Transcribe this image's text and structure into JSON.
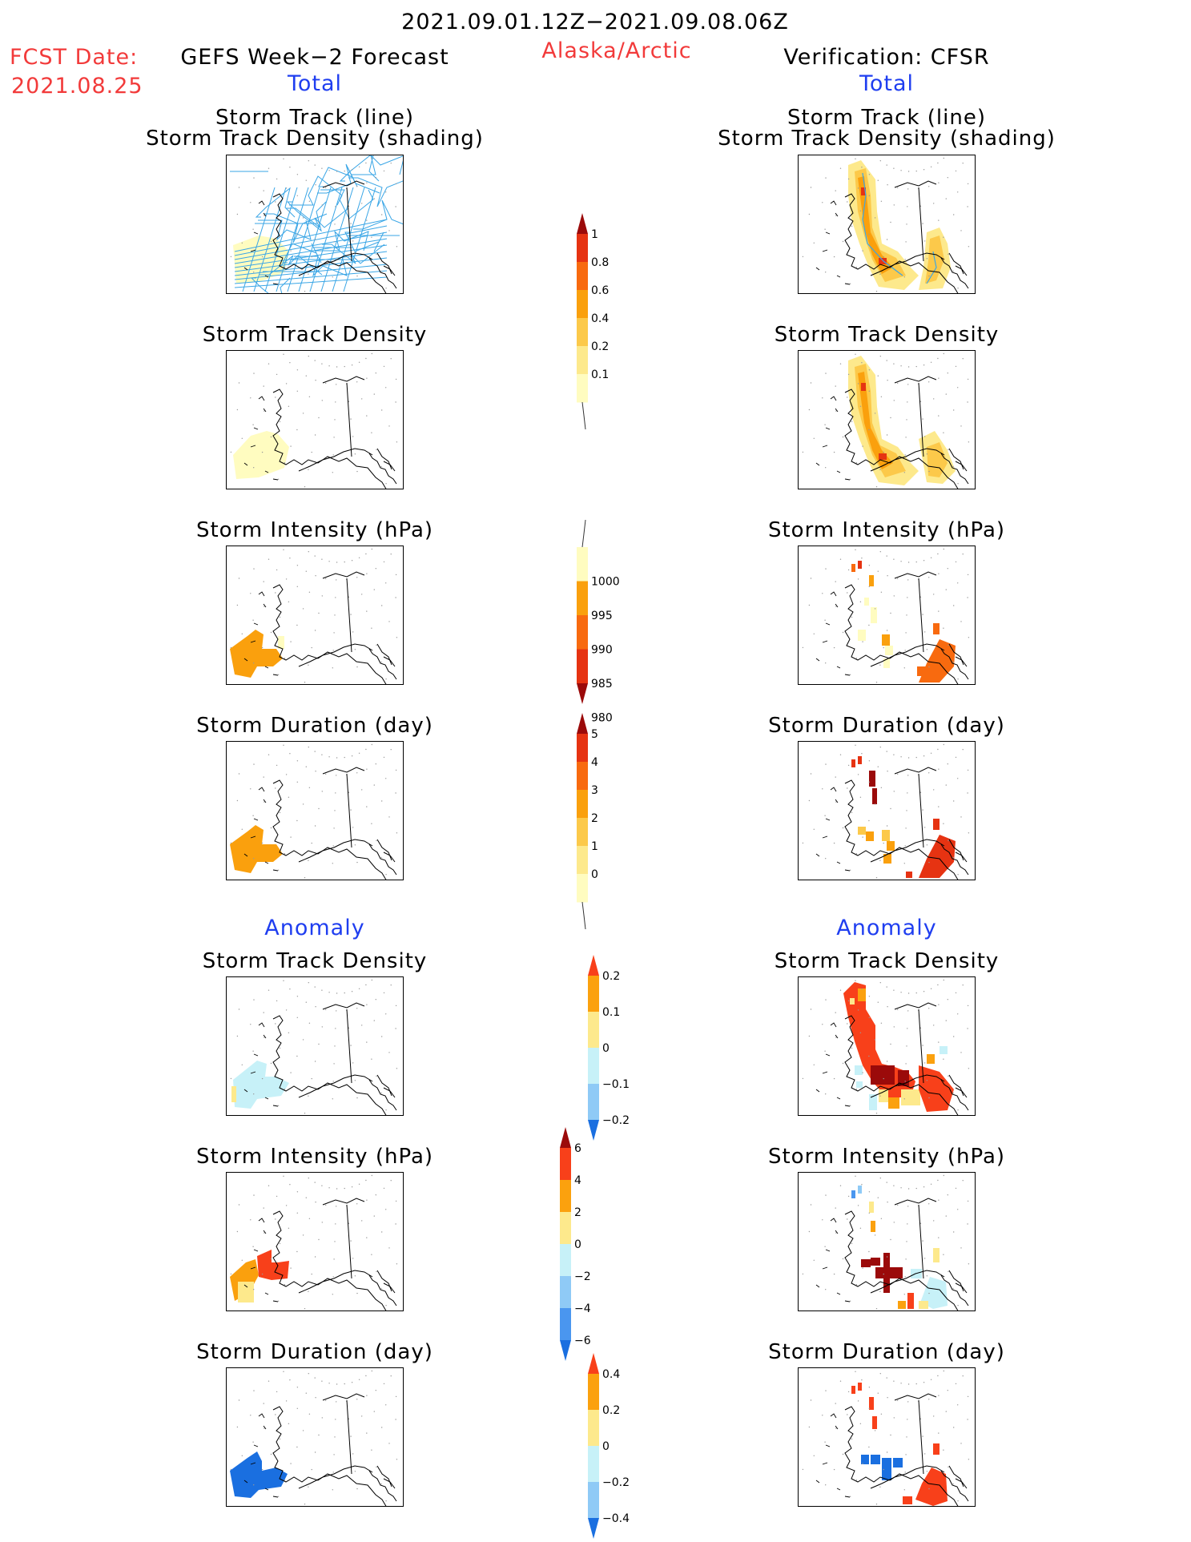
{
  "header": {
    "title": "2021.09.01.12Z−2021.09.08.06Z",
    "region": "Alaska/Arctic",
    "fcst_label": "FCST Date:",
    "fcst_date": "2021.08.25",
    "left_source": "GEFS Week−2 Forecast",
    "right_source": "Verification: CFSR",
    "left_total": "Total",
    "right_total": "Total",
    "left_anomaly": "Anomaly",
    "right_anomaly": "Anomaly"
  },
  "panels": {
    "track_line": "Storm Track (line)",
    "track_shading": "Storm Track Density (shading)",
    "density": "Storm Track Density",
    "intensity": "Storm Intensity (hPa)",
    "duration": "Storm Duration (day)"
  },
  "colorbars": {
    "density_total": {
      "ticks": [
        "1",
        "0.8",
        "0.6",
        "0.4",
        "0.2",
        "0.1"
      ],
      "colors": [
        "#9b0a0a",
        "#e63312",
        "#f86a0f",
        "#faa00d",
        "#fcc94a",
        "#fde98c",
        "#fffcc0"
      ]
    },
    "intensity_total": {
      "ticks": [
        "1000",
        "995",
        "990",
        "985",
        "980"
      ],
      "colors": [
        "#fffcc0",
        "#faa00d",
        "#f86a0f",
        "#e63312",
        "#9b0a0a"
      ]
    },
    "duration_total": {
      "ticks": [
        "5",
        "4",
        "3",
        "2",
        "1",
        "0"
      ],
      "colors": [
        "#9b0a0a",
        "#e63312",
        "#f86a0f",
        "#faa00d",
        "#fcc94a",
        "#fde98c",
        "#fffcc0"
      ]
    },
    "density_anom": {
      "ticks": [
        "0.2",
        "0.1",
        "0",
        "−0.1",
        "−0.2"
      ],
      "colors": [
        "#f8401a",
        "#fba10e",
        "#fde98c",
        "#c7f1f8",
        "#8fcaf6",
        "#1a6fe0"
      ]
    },
    "intensity_anom": {
      "ticks": [
        "6",
        "4",
        "2",
        "0",
        "−2",
        "−4",
        "−6"
      ],
      "colors": [
        "#9b0a0a",
        "#f8401a",
        "#fba10e",
        "#fde98c",
        "#c7f1f8",
        "#8fcaf6",
        "#4a96ef",
        "#1a6fe0"
      ]
    },
    "duration_anom": {
      "ticks": [
        "0.4",
        "0.2",
        "0",
        "−0.2",
        "−0.4"
      ],
      "colors": [
        "#f8401a",
        "#fba10e",
        "#fde98c",
        "#c7f1f8",
        "#8fcaf6",
        "#1a6fe0"
      ]
    }
  },
  "colors": {
    "red_text": "#f23a3a",
    "blue_text": "#1f3ef0",
    "track_line": "#3aa6e6"
  }
}
